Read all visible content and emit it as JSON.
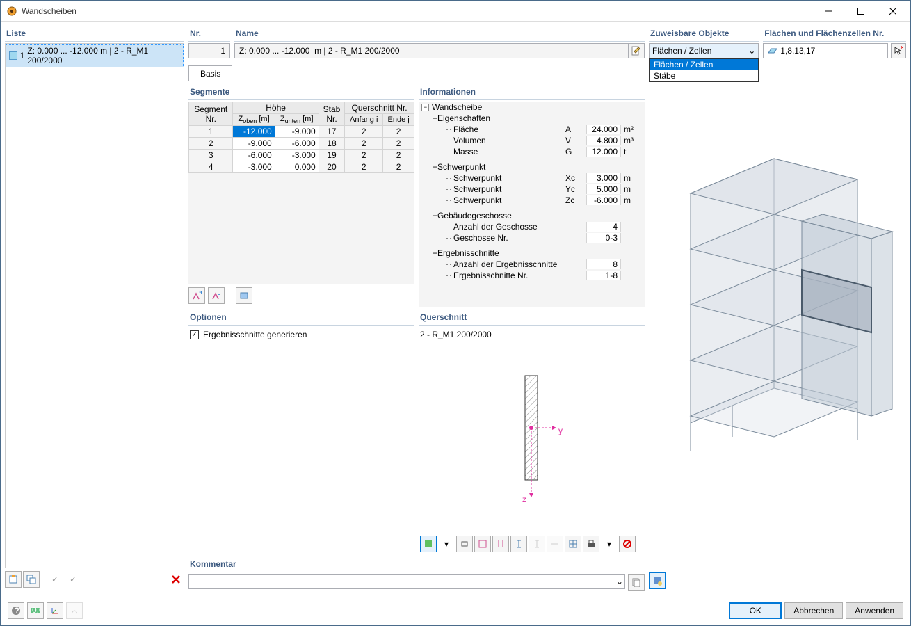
{
  "window": {
    "title": "Wandscheiben"
  },
  "left": {
    "header": "Liste",
    "items": [
      {
        "num": "1",
        "text": "Z: 0.000 ... -12.000 m | 2 - R_M1 200/2000"
      }
    ]
  },
  "top": {
    "nr_label": "Nr.",
    "nr_value": "1",
    "name_label": "Name",
    "name_value": "Z: 0.000 ... -12.000  m | 2 - R_M1 200/2000"
  },
  "tabs": {
    "basis": "Basis"
  },
  "segments": {
    "header": "Segmente",
    "cols": {
      "seg": "Segment\nNr.",
      "hohe": "Höhe",
      "zoben": "Zoben [m]",
      "zunten": "Zunten [m]",
      "stab": "Stab\nNr.",
      "qs": "Querschnitt Nr.",
      "anfang": "Anfang i",
      "ende": "Ende j"
    },
    "rows": [
      {
        "n": "1",
        "zoben": "-12.000",
        "zunten": "-9.000",
        "stab": "17",
        "ai": "2",
        "ej": "2",
        "sel": true
      },
      {
        "n": "2",
        "zoben": "-9.000",
        "zunten": "-6.000",
        "stab": "18",
        "ai": "2",
        "ej": "2"
      },
      {
        "n": "3",
        "zoben": "-6.000",
        "zunten": "-3.000",
        "stab": "19",
        "ai": "2",
        "ej": "2"
      },
      {
        "n": "4",
        "zoben": "-3.000",
        "zunten": "0.000",
        "stab": "20",
        "ai": "2",
        "ej": "2"
      }
    ]
  },
  "info": {
    "header": "Informationen",
    "wandscheibe": "Wandscheibe",
    "eigenschaften": "Eigenschaften",
    "props": [
      {
        "lbl": "Fläche",
        "sym": "A",
        "val": "24.000",
        "unit": "m²"
      },
      {
        "lbl": "Volumen",
        "sym": "V",
        "val": "4.800",
        "unit": "m³"
      },
      {
        "lbl": "Masse",
        "sym": "G",
        "val": "12.000",
        "unit": "t"
      }
    ],
    "schwerpunkt": "Schwerpunkt",
    "centroid": [
      {
        "lbl": "Schwerpunkt",
        "sym": "Xc",
        "val": "3.000",
        "unit": "m"
      },
      {
        "lbl": "Schwerpunkt",
        "sym": "Yc",
        "val": "5.000",
        "unit": "m"
      },
      {
        "lbl": "Schwerpunkt",
        "sym": "Zc",
        "val": "-6.000",
        "unit": "m"
      }
    ],
    "geschosse": "Gebäudegeschosse",
    "stories": [
      {
        "lbl": "Anzahl der Geschosse",
        "sym": "",
        "val": "4",
        "unit": ""
      },
      {
        "lbl": "Geschosse Nr.",
        "sym": "",
        "val": "0-3",
        "unit": ""
      }
    ],
    "ergebnis": "Ergebnisschnitte",
    "results": [
      {
        "lbl": "Anzahl der Ergebnisschnitte",
        "sym": "",
        "val": "8",
        "unit": ""
      },
      {
        "lbl": "Ergebnisschnitte Nr.",
        "sym": "",
        "val": "1-8",
        "unit": ""
      }
    ]
  },
  "options": {
    "header": "Optionen",
    "gen": "Ergebnisschnitte generieren"
  },
  "querschnitt": {
    "header": "Querschnitt",
    "name": "2 - R_M1 200/2000",
    "y": "y",
    "z": "z"
  },
  "kommentar": {
    "header": "Kommentar"
  },
  "assign": {
    "header": "Zuweisbare Objekte",
    "selected": "Flächen / Zellen",
    "options": [
      "Flächen / Zellen",
      "Stäbe"
    ],
    "flachen_header": "Flächen und Flächenzellen Nr.",
    "flachen_value": "1,8,13,17"
  },
  "buttons": {
    "ok": "OK",
    "cancel": "Abbrechen",
    "apply": "Anwenden"
  }
}
